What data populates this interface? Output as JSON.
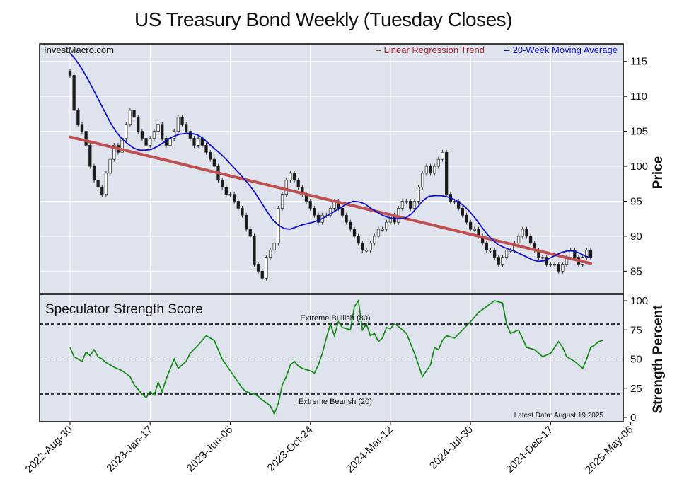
{
  "chart_data": {
    "type": "candlestick+line",
    "title": "US Treasury Bond Weekly (Tuesday Closes)",
    "watermark": "InvestMacro.com",
    "legend": {
      "placement": "top-right",
      "items": [
        {
          "label": "-- Linear Regression Trend",
          "color": "#a0262a"
        },
        {
          "label": "-- 20-Week Moving Average",
          "color": "#1010cc"
        }
      ]
    },
    "x_tick_labels": [
      "2022-Aug-30",
      "2023-Jan-17",
      "2023-Jun-06",
      "2023-Oct-24",
      "2024-Mar-12",
      "2024-Jul-30",
      "2024-Dec-17",
      "2025-May-06"
    ],
    "x_tick_weeks": [
      0,
      20,
      40,
      60,
      80,
      100,
      120,
      140
    ],
    "price_panel": {
      "ylabel": "Price",
      "ylim": [
        81.8,
        117.5
      ],
      "yticks": [
        85,
        90,
        95,
        100,
        105,
        110,
        115
      ],
      "grid": true,
      "closes": [
        113,
        108,
        106,
        105,
        103,
        100,
        98,
        97,
        96,
        99,
        101,
        103,
        102,
        104,
        106,
        108,
        107,
        105,
        104,
        103,
        104,
        105,
        106,
        104,
        103,
        104,
        105,
        107,
        106,
        105,
        104,
        103,
        104,
        103,
        102,
        101,
        100,
        98,
        97,
        96,
        96,
        95,
        94,
        93,
        91,
        90,
        86,
        85,
        84,
        87,
        88,
        89,
        94,
        96,
        98,
        99,
        98,
        97,
        96,
        95,
        94,
        93,
        92,
        93,
        93,
        94,
        95,
        94,
        93,
        92,
        91,
        90,
        89,
        88,
        88,
        89,
        90,
        91,
        91,
        92,
        93,
        92,
        94,
        95,
        95,
        94,
        95,
        97,
        99,
        100,
        99,
        100,
        101,
        102,
        96,
        95,
        95,
        94,
        93,
        92,
        91,
        91,
        90,
        89,
        88,
        88,
        87,
        86,
        87,
        88,
        88,
        89,
        90,
        91,
        90,
        89,
        88,
        87,
        87,
        86,
        86,
        86,
        85,
        86,
        87,
        88,
        87,
        86,
        87,
        88,
        87
      ],
      "ma20": [
        116.2,
        115.2,
        114.0,
        112.6,
        111.0,
        109.4,
        107.8,
        106.2,
        104.9,
        103.9,
        103.2,
        102.6,
        102.3,
        102.3,
        102.4,
        102.8,
        103.3,
        103.9,
        104.3,
        104.6,
        104.7,
        104.7,
        104.5,
        104.0,
        103.2,
        102.5,
        101.8,
        101.0,
        100.1,
        99.2,
        98.3,
        97.3,
        96.2,
        94.9,
        93.6,
        92.4,
        91.6,
        91.1,
        91.0,
        91.3,
        91.6,
        91.8,
        92.0,
        92.3,
        92.7,
        93.2,
        93.7,
        94.2,
        94.7,
        95.0,
        94.9,
        94.6,
        94.0,
        93.5,
        93.0,
        92.7,
        92.5,
        92.5,
        92.6,
        93.2,
        94.1,
        95.1,
        95.7,
        95.8,
        95.8,
        95.7,
        95.4,
        95.0,
        94.4,
        93.6,
        92.6,
        91.5,
        90.4,
        89.5,
        88.8,
        88.4,
        88.1,
        87.8,
        87.4,
        87.0,
        86.6,
        86.4,
        86.5,
        86.9,
        87.3,
        87.7,
        87.9,
        87.9,
        87.6,
        87.2,
        86.9
      ],
      "regression": {
        "start": 104.2,
        "end": 86.1
      }
    },
    "strength_panel": {
      "title": "Speculator Strength Score",
      "ylabel": "Strength Percent",
      "ylim": [
        0,
        100
      ],
      "yticks": [
        0,
        25,
        50,
        75,
        100
      ],
      "reference_lines": [
        {
          "value": 80,
          "label": "Extreme Bullish (80)",
          "style": "dashed-black"
        },
        {
          "value": 50,
          "label": "",
          "style": "dashed-gray"
        },
        {
          "value": 20,
          "label": "Extreme Bearish (20)",
          "style": "dashed-black"
        }
      ],
      "footnote": "Latest Data: August 19 2025",
      "values": [
        60,
        52,
        50,
        48,
        56,
        53,
        58,
        52,
        50,
        47,
        43,
        40,
        35,
        28,
        20,
        17,
        22,
        19,
        30,
        22,
        33,
        50,
        42,
        45,
        48,
        55,
        62,
        70,
        66,
        58,
        50,
        45,
        40,
        35,
        30,
        25,
        22,
        20,
        18,
        15,
        10,
        3,
        12,
        28,
        35,
        45,
        48,
        44,
        42,
        40,
        38,
        45,
        55,
        68,
        80,
        70,
        82,
        77,
        75,
        95,
        100,
        75,
        80,
        70,
        72,
        65,
        68,
        77,
        76,
        80,
        78,
        72,
        55,
        35,
        45,
        60,
        58,
        66,
        70,
        68,
        75,
        82,
        90,
        95,
        100,
        98,
        80,
        72,
        75,
        60,
        58,
        52,
        55,
        60,
        65,
        60,
        52,
        50,
        48,
        45,
        42,
        50,
        60,
        62,
        65,
        66
      ],
      "weeks": [
        0,
        1,
        2,
        3,
        4,
        5,
        6,
        7,
        8,
        9,
        11,
        13,
        15,
        16,
        18,
        19,
        20,
        21,
        22,
        23,
        24,
        26,
        27,
        28,
        29,
        30,
        32,
        34,
        36,
        37,
        38,
        39,
        40,
        41,
        42,
        43,
        44,
        46,
        47,
        48,
        50,
        51,
        52,
        53,
        54,
        55,
        56,
        57,
        58,
        60,
        61,
        62,
        63,
        64,
        65,
        66,
        67,
        68,
        70,
        71,
        72,
        73,
        74,
        75,
        76,
        77,
        78,
        79,
        80,
        81,
        82,
        84,
        86,
        88,
        90,
        91,
        92,
        93,
        94,
        96,
        98,
        100,
        102,
        104,
        106,
        108,
        109,
        110,
        112,
        114,
        116,
        118,
        120,
        121,
        122,
        123,
        124,
        125,
        126,
        127,
        128,
        129,
        130,
        131,
        132,
        133
      ]
    }
  }
}
